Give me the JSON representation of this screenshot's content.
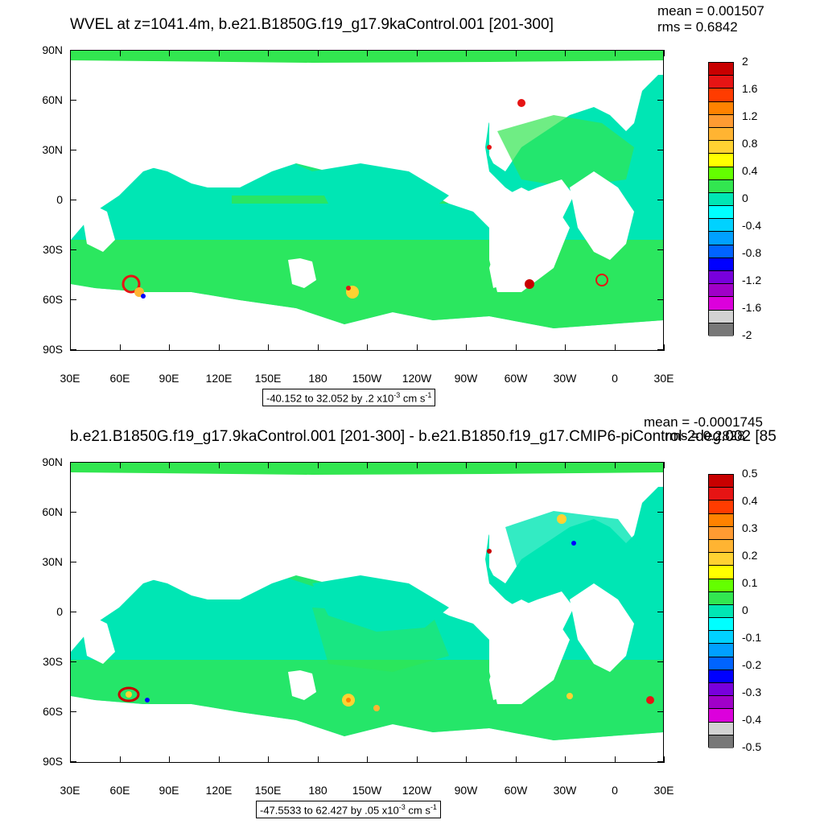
{
  "colors": {
    "palette_top": [
      "#c80000",
      "#e61414",
      "#ff3c00",
      "#ff8200",
      "#ff9b32",
      "#ffb432",
      "#ffd232",
      "#ffff00",
      "#64ff00",
      "#32e650",
      "#00e6b4",
      "#00ffff",
      "#00d2ff",
      "#00a0ff",
      "#0064ff",
      "#0000ff",
      "#7800dc",
      "#a000c8",
      "#dc00dc",
      "#d2d2d2",
      "#787878"
    ],
    "ocean_main": "#32e650",
    "ocean_alt": "#00e6b4",
    "ocean_cyan": "#00ffff",
    "land": "#ffffff"
  },
  "x_labels": [
    "30E",
    "60E",
    "90E",
    "120E",
    "150E",
    "180",
    "150W",
    "120W",
    "90W",
    "60W",
    "30W",
    "0",
    "30E"
  ],
  "y_labels": [
    "90N",
    "60N",
    "30N",
    "0",
    "30S",
    "60S",
    "90S"
  ],
  "top": {
    "title": "WVEL at z=1041.4m, b.e21.B1850G.f19_g17.9kaControl.001 [201-300]",
    "mean": "mean = 0.001507",
    "rms": "rms = 0.6842",
    "info_text": "-40.152 to 32.052 by .2 x10",
    "info_exp": "-3",
    "info_unit": " cm s",
    "info_unit_exp": "-1",
    "colorbar_labels": [
      "2",
      "1.6",
      "1.2",
      "0.8",
      "0.4",
      "0",
      "-0.4",
      "-0.8",
      "-1.2",
      "-1.6",
      "-2"
    ]
  },
  "bottom": {
    "title": "b.e21.B1850G.f19_g17.9kaControl.001 [201-300] - b.e21.B1850.f19_g17.CMIP6-piControl-2deg.002 [85",
    "mean": "mean = -0.0001745",
    "rms": "rms = 0.2828",
    "info_text": "-47.5533 to 62.427 by .05 x10",
    "info_exp": "-3",
    "info_unit": " cm s",
    "info_unit_exp": "-1",
    "colorbar_labels": [
      "0.5",
      "0.4",
      "0.3",
      "0.2",
      "0.1",
      "0",
      "-0.1",
      "-0.2",
      "-0.3",
      "-0.4",
      "-0.5"
    ]
  }
}
